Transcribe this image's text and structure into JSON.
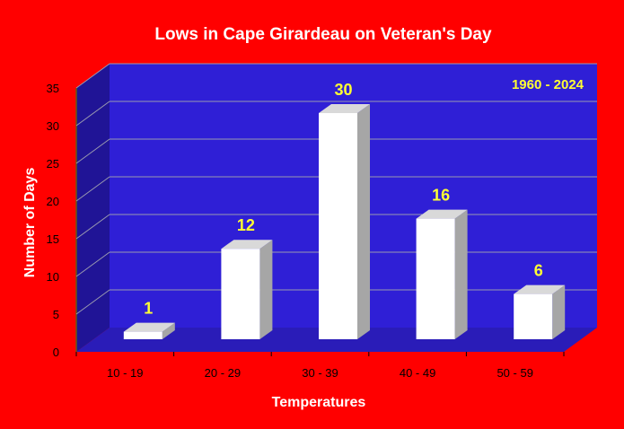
{
  "colors": {
    "background": "#ff0000",
    "back_wall": "#2f1fd6",
    "side_wall": "#201496",
    "floor": "#2a1cb8",
    "gridline": "#9a9ab0",
    "bar_front": "#ffffff",
    "bar_side": "#a6a6a6",
    "bar_top": "#d9d9d9",
    "label_color": "#ffff33",
    "text_color": "#ffffff"
  },
  "chart_data": {
    "type": "bar",
    "title": "Lows in Cape Girardeau on Veteran's Day",
    "annotation": "1960 - 2024",
    "xlabel": "Temperatures",
    "ylabel": "Number of Days",
    "categories": [
      "10 - 19",
      "20 - 29",
      "30 - 39",
      "40 - 49",
      "50 - 59"
    ],
    "values": [
      1,
      12,
      30,
      16,
      6
    ],
    "data_labels": [
      "1",
      "12",
      "30",
      "16",
      "6"
    ],
    "ylim": [
      0,
      35
    ],
    "yticks": [
      0,
      5,
      10,
      15,
      20,
      25,
      30,
      35
    ],
    "ytick_labels": [
      "0",
      "5",
      "10",
      "15",
      "20",
      "25",
      "30",
      "35"
    ],
    "grid": true,
    "style": "3d"
  }
}
